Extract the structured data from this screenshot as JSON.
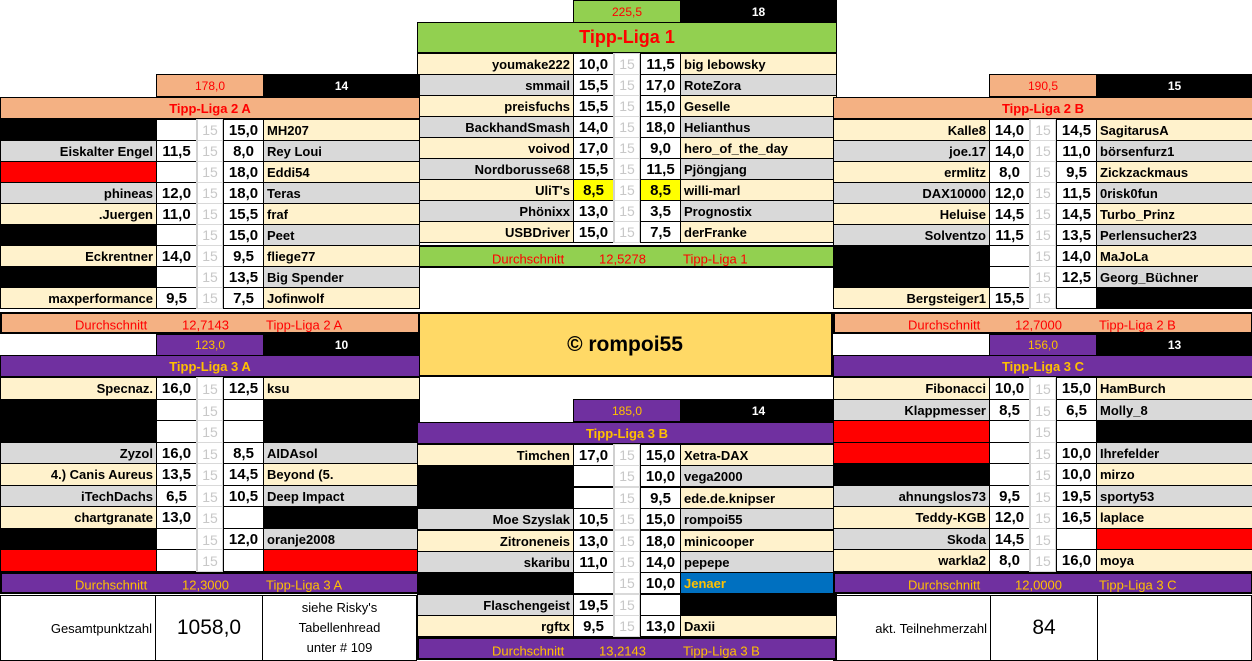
{
  "colors": {
    "cream": "#FFF2CC",
    "grey": "#D9D9D9",
    "black": "#000000",
    "red": "#FF0000",
    "blue": "#0070C0",
    "highlight": "#FFFF00",
    "liga1": "#92D050",
    "liga2": "#F4B183",
    "liga3": "#7030A0",
    "liga12_text": "#FF0000",
    "liga3_text": "#FFC000",
    "banner": "#FFD966"
  },
  "avg_label": "Durchschnitt",
  "leagues": [
    {
      "id": "liga1",
      "name": "Tipp-Liga 1",
      "total": "225,5",
      "count": "18",
      "avg": "12,5278",
      "color": "liga1",
      "rows": [
        {
          "left": "youmake222",
          "ls": "10,0",
          "mid": "15",
          "rs": "11,5",
          "right": "big lebowsky"
        },
        {
          "left": "smmail",
          "ls": "15,5",
          "mid": "15",
          "rs": "17,0",
          "right": "RoteZora"
        },
        {
          "left": "preisfuchs",
          "ls": "15,5",
          "mid": "15",
          "rs": "15,0",
          "right": "Geselle"
        },
        {
          "left": "BackhandSmash",
          "ls": "14,0",
          "mid": "15",
          "rs": "18,0",
          "right": "Helianthus"
        },
        {
          "left": "voivod",
          "ls": "17,0",
          "mid": "15",
          "rs": "9,0",
          "right": "hero_of_the_day"
        },
        {
          "left": "Nordborusse68",
          "ls": "15,5",
          "mid": "15",
          "rs": "11,5",
          "right": "Pjöngjang"
        },
        {
          "left": "UliT's",
          "ls": "8,5",
          "mid": "15",
          "rs": "8,5",
          "right": "willi-marl",
          "highlight": true
        },
        {
          "left": "Phönixx",
          "ls": "13,0",
          "mid": "15",
          "rs": "3,5",
          "right": "Prognostix"
        },
        {
          "left": "USBDriver",
          "ls": "15,0",
          "mid": "15",
          "rs": "7,5",
          "right": "derFranke"
        }
      ]
    },
    {
      "id": "liga2a",
      "name": "Tipp-Liga 2 A",
      "total": "178,0",
      "count": "14",
      "avg": "12,7143",
      "color": "liga2",
      "rows": [
        {
          "left": "",
          "lbg": "black",
          "ls": "",
          "mid": "15",
          "rs": "15,0",
          "right": "MH207"
        },
        {
          "left": "Eiskalter Engel",
          "ls": "11,5",
          "mid": "15",
          "rs": "8,0",
          "right": "Rey Loui"
        },
        {
          "left": "",
          "lbg": "red",
          "ls": "",
          "mid": "15",
          "rs": "18,0",
          "right": "Eddi54"
        },
        {
          "left": "phineas",
          "ls": "12,0",
          "mid": "15",
          "rs": "18,0",
          "right": "Teras"
        },
        {
          "left": ".Juergen",
          "ls": "11,0",
          "mid": "15",
          "rs": "15,5",
          "right": "fraf"
        },
        {
          "left": "",
          "lbg": "black",
          "ls": "",
          "mid": "15",
          "rs": "15,0",
          "right": "Peet"
        },
        {
          "left": "Eckrentner",
          "ls": "14,0",
          "mid": "15",
          "rs": "9,5",
          "right": "fliege77"
        },
        {
          "left": "",
          "lbg": "black",
          "ls": "",
          "mid": "15",
          "rs": "13,5",
          "right": "Big Spender"
        },
        {
          "left": "maxperformance",
          "ls": "9,5",
          "mid": "15",
          "rs": "7,5",
          "right": "Jofinwolf"
        }
      ]
    },
    {
      "id": "liga2b",
      "name": "Tipp-Liga 2 B",
      "total": "190,5",
      "count": "15",
      "avg": "12,7000",
      "color": "liga2",
      "rows": [
        {
          "left": "Kalle8",
          "ls": "14,0",
          "mid": "15",
          "rs": "14,5",
          "right": "SagitarusA"
        },
        {
          "left": "joe.17",
          "ls": "14,0",
          "mid": "15",
          "rs": "11,0",
          "right": "börsenfurz1"
        },
        {
          "left": "ermlitz",
          "ls": "8,0",
          "mid": "15",
          "rs": "9,5",
          "right": "Zickzackmaus"
        },
        {
          "left": "DAX10000",
          "ls": "12,0",
          "mid": "15",
          "rs": "11,5",
          "right": "0risk0fun"
        },
        {
          "left": "Heluise",
          "ls": "14,5",
          "mid": "15",
          "rs": "14,5",
          "right": "Turbo_Prinz"
        },
        {
          "left": "Solventzo",
          "ls": "11,5",
          "mid": "15",
          "rs": "13,5",
          "right": "Perlensucher23"
        },
        {
          "left": "",
          "lbg": "black",
          "ls": "",
          "mid": "15",
          "rs": "14,0",
          "right": "MaJoLa"
        },
        {
          "left": "",
          "lbg": "black",
          "ls": "",
          "mid": "15",
          "rs": "12,5",
          "right": "Georg_Büchner"
        },
        {
          "left": "Bergsteiger1",
          "ls": "15,5",
          "mid": "15",
          "rs": "",
          "right": "",
          "rbg": "black"
        }
      ]
    },
    {
      "id": "liga3a",
      "name": "Tipp-Liga 3 A",
      "total": "123,0",
      "count": "10",
      "avg": "12,3000",
      "color": "liga3",
      "rows": [
        {
          "left": "Specnaz.",
          "ls": "16,0",
          "mid": "15",
          "rs": "12,5",
          "right": "ksu"
        },
        {
          "left": "",
          "lbg": "black",
          "ls": "",
          "mid": "15",
          "rs": "",
          "right": "",
          "rbg": "black"
        },
        {
          "left": "",
          "lbg": "black",
          "ls": "",
          "mid": "15",
          "rs": "",
          "right": "",
          "rbg": "black"
        },
        {
          "left": "Zyzol",
          "ls": "16,0",
          "mid": "15",
          "rs": "8,5",
          "right": "AIDAsol"
        },
        {
          "left": "4.) Canis Aureus",
          "ls": "13,5",
          "mid": "15",
          "rs": "14,5",
          "right": "Beyond (5."
        },
        {
          "left": "iTechDachs",
          "ls": "6,5",
          "mid": "15",
          "rs": "10,5",
          "right": "Deep Impact"
        },
        {
          "left": "chartgranate",
          "ls": "13,0",
          "mid": "15",
          "rs": "",
          "right": "",
          "rbg": "black"
        },
        {
          "left": "",
          "lbg": "black",
          "ls": "",
          "mid": "15",
          "rs": "12,0",
          "right": "oranje2008"
        },
        {
          "left": "",
          "lbg": "red",
          "ls": "",
          "mid": "15",
          "rs": "",
          "right": "",
          "rbg": "red"
        }
      ]
    },
    {
      "id": "liga3b",
      "name": "Tipp-Liga 3 B",
      "total": "185,0",
      "count": "14",
      "avg": "13,2143",
      "color": "liga3",
      "rows": [
        {
          "left": "Timchen",
          "ls": "17,0",
          "mid": "15",
          "rs": "15,0",
          "right": "Xetra-DAX"
        },
        {
          "left": "",
          "lbg": "black",
          "ls": "",
          "mid": "15",
          "rs": "10,0",
          "right": "vega2000"
        },
        {
          "left": "",
          "lbg": "black",
          "ls": "",
          "mid": "15",
          "rs": "9,5",
          "right": "ede.de.knipser"
        },
        {
          "left": "Moe Szyslak",
          "ls": "10,5",
          "mid": "15",
          "rs": "15,0",
          "right": "rompoi55"
        },
        {
          "left": "Zitroneneis",
          "ls": "13,0",
          "mid": "15",
          "rs": "18,0",
          "right": "minicooper"
        },
        {
          "left": "skaribu",
          "ls": "11,0",
          "mid": "15",
          "rs": "14,0",
          "right": "pepepe"
        },
        {
          "left": "",
          "lbg": "black",
          "ls": "",
          "mid": "15",
          "rs": "10,0",
          "right": "Jenaer",
          "rbg": "blue"
        },
        {
          "left": "Flaschengeist",
          "ls": "19,5",
          "mid": "15",
          "rs": "",
          "right": "",
          "rbg": "black"
        },
        {
          "left": "rgftx",
          "ls": "9,5",
          "mid": "15",
          "rs": "13,0",
          "right": "Daxii"
        }
      ]
    },
    {
      "id": "liga3c",
      "name": "Tipp-Liga 3 C",
      "total": "156,0",
      "count": "13",
      "avg": "12,0000",
      "color": "liga3",
      "rows": [
        {
          "left": "Fibonacci",
          "ls": "10,0",
          "mid": "15",
          "rs": "15,0",
          "right": "HamBurch"
        },
        {
          "left": "Klappmesser",
          "ls": "8,5",
          "mid": "15",
          "rs": "6,5",
          "right": "Molly_8"
        },
        {
          "left": "",
          "lbg": "red",
          "ls": "",
          "mid": "15",
          "rs": "",
          "right": "",
          "rbg": "black"
        },
        {
          "left": "",
          "lbg": "red",
          "ls": "",
          "mid": "15",
          "rs": "10,0",
          "right": "Ihrefelder"
        },
        {
          "left": "",
          "lbg": "black",
          "ls": "",
          "mid": "15",
          "rs": "10,0",
          "right": "mirzo"
        },
        {
          "left": "ahnungslos73",
          "ls": "9,5",
          "mid": "15",
          "rs": "19,5",
          "right": "sporty53"
        },
        {
          "left": "Teddy-KGB",
          "ls": "12,0",
          "mid": "15",
          "rs": "16,5",
          "right": "laplace"
        },
        {
          "left": "Skoda",
          "ls": "14,5",
          "mid": "15",
          "rs": "",
          "right": "",
          "rbg": "red"
        },
        {
          "left": "warkla2",
          "ls": "8,0",
          "mid": "15",
          "rs": "16,0",
          "right": "moya"
        }
      ]
    }
  ],
  "banner": "© rompoi55",
  "summary": {
    "total_label": "Gesamtpunktzahl",
    "total_value": "1058,0",
    "note_lines": [
      "siehe Risky's",
      "Tabellenhread",
      "unter # 109"
    ],
    "participants_label": "akt. Teilnehmerzahl",
    "participants_value": "84"
  }
}
